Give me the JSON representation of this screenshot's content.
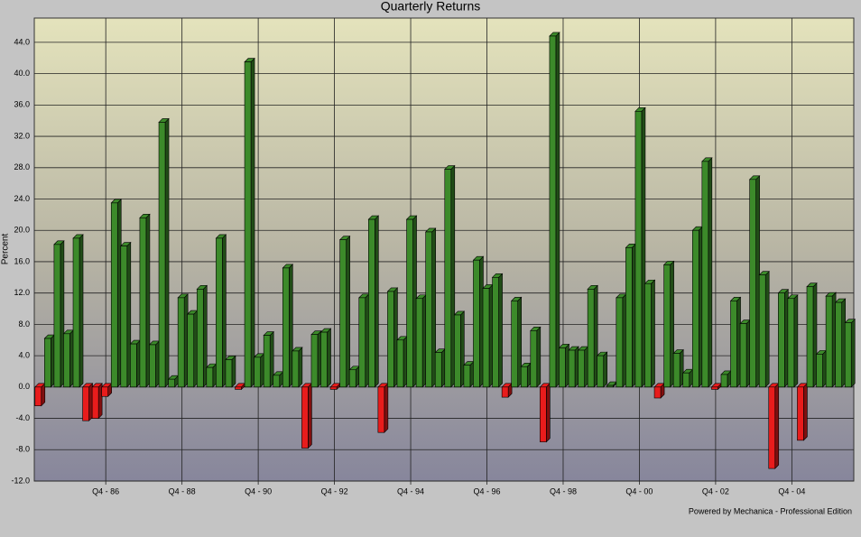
{
  "chart_data": {
    "type": "bar3d",
    "title": "Quarterly Returns",
    "y_label": "Percent",
    "footer": "Powered by Mechanica - Professional Edition",
    "categories": [
      null,
      null,
      null,
      null,
      null,
      null,
      null,
      "Q4 - 86",
      null,
      null,
      null,
      null,
      null,
      null,
      null,
      "Q4 - 88",
      null,
      null,
      null,
      null,
      null,
      null,
      null,
      "Q4 - 90",
      null,
      null,
      null,
      null,
      null,
      null,
      null,
      "Q4 - 92",
      null,
      null,
      null,
      null,
      null,
      null,
      null,
      "Q4 - 94",
      null,
      null,
      null,
      null,
      null,
      null,
      null,
      "Q4 - 96",
      null,
      null,
      null,
      null,
      null,
      null,
      null,
      "Q4 - 98",
      null,
      null,
      null,
      null,
      null,
      null,
      null,
      "Q4 - 00",
      null,
      null,
      null,
      null,
      null,
      null,
      null,
      "Q4 - 02",
      null,
      null,
      null,
      null,
      null,
      null,
      null,
      "Q4 - 04",
      null,
      null,
      null,
      null,
      null,
      null
    ],
    "values": [
      -2.4,
      6.2,
      18.2,
      6.8,
      19.0,
      -4.3,
      -4.0,
      -1.2,
      23.5,
      18.0,
      5.5,
      21.6,
      5.4,
      33.8,
      1.0,
      11.4,
      9.3,
      12.5,
      2.5,
      19.0,
      3.5,
      -0.3,
      41.5,
      3.8,
      6.6,
      1.5,
      15.2,
      4.6,
      -7.8,
      6.7,
      7.0,
      -0.3,
      18.8,
      2.2,
      11.4,
      21.4,
      -5.8,
      12.2,
      6.0,
      21.4,
      11.3,
      19.8,
      4.4,
      27.8,
      9.2,
      2.8,
      16.2,
      12.6,
      14.0,
      -1.3,
      11.0,
      2.6,
      7.2,
      -7.0,
      44.8,
      5.0,
      4.7,
      4.7,
      12.5,
      4.0,
      0.2,
      11.4,
      17.8,
      35.2,
      13.2,
      -1.4,
      15.6,
      4.3,
      1.8,
      20.0,
      28.8,
      -0.3,
      1.6,
      11.0,
      8.1,
      26.5,
      14.3,
      -10.4,
      12.0,
      11.3,
      -6.8,
      12.8,
      4.2,
      11.6,
      10.8,
      8.2
    ],
    "colors": {
      "positive": "#3c8a2a",
      "negative": "#e81c1c"
    },
    "ylim": [
      -12,
      47.1
    ],
    "yticks": [
      {
        "value": -12,
        "label": "-12.0"
      },
      {
        "value": -8,
        "label": "-8.0"
      },
      {
        "value": -4,
        "label": "-4.0"
      },
      {
        "value": 0,
        "label": "0.0"
      },
      {
        "value": 4,
        "label": "4.0"
      },
      {
        "value": 8,
        "label": "8.0"
      },
      {
        "value": 12,
        "label": "12.0"
      },
      {
        "value": 16,
        "label": "16.0"
      },
      {
        "value": 20,
        "label": "20.0"
      },
      {
        "value": 24,
        "label": "24.0"
      },
      {
        "value": 28,
        "label": "28.0"
      },
      {
        "value": 32,
        "label": "32.0"
      },
      {
        "value": 36,
        "label": "36.0"
      },
      {
        "value": 40,
        "label": "40.0"
      },
      {
        "value": 44,
        "label": "44.0"
      }
    ],
    "grid": true
  }
}
